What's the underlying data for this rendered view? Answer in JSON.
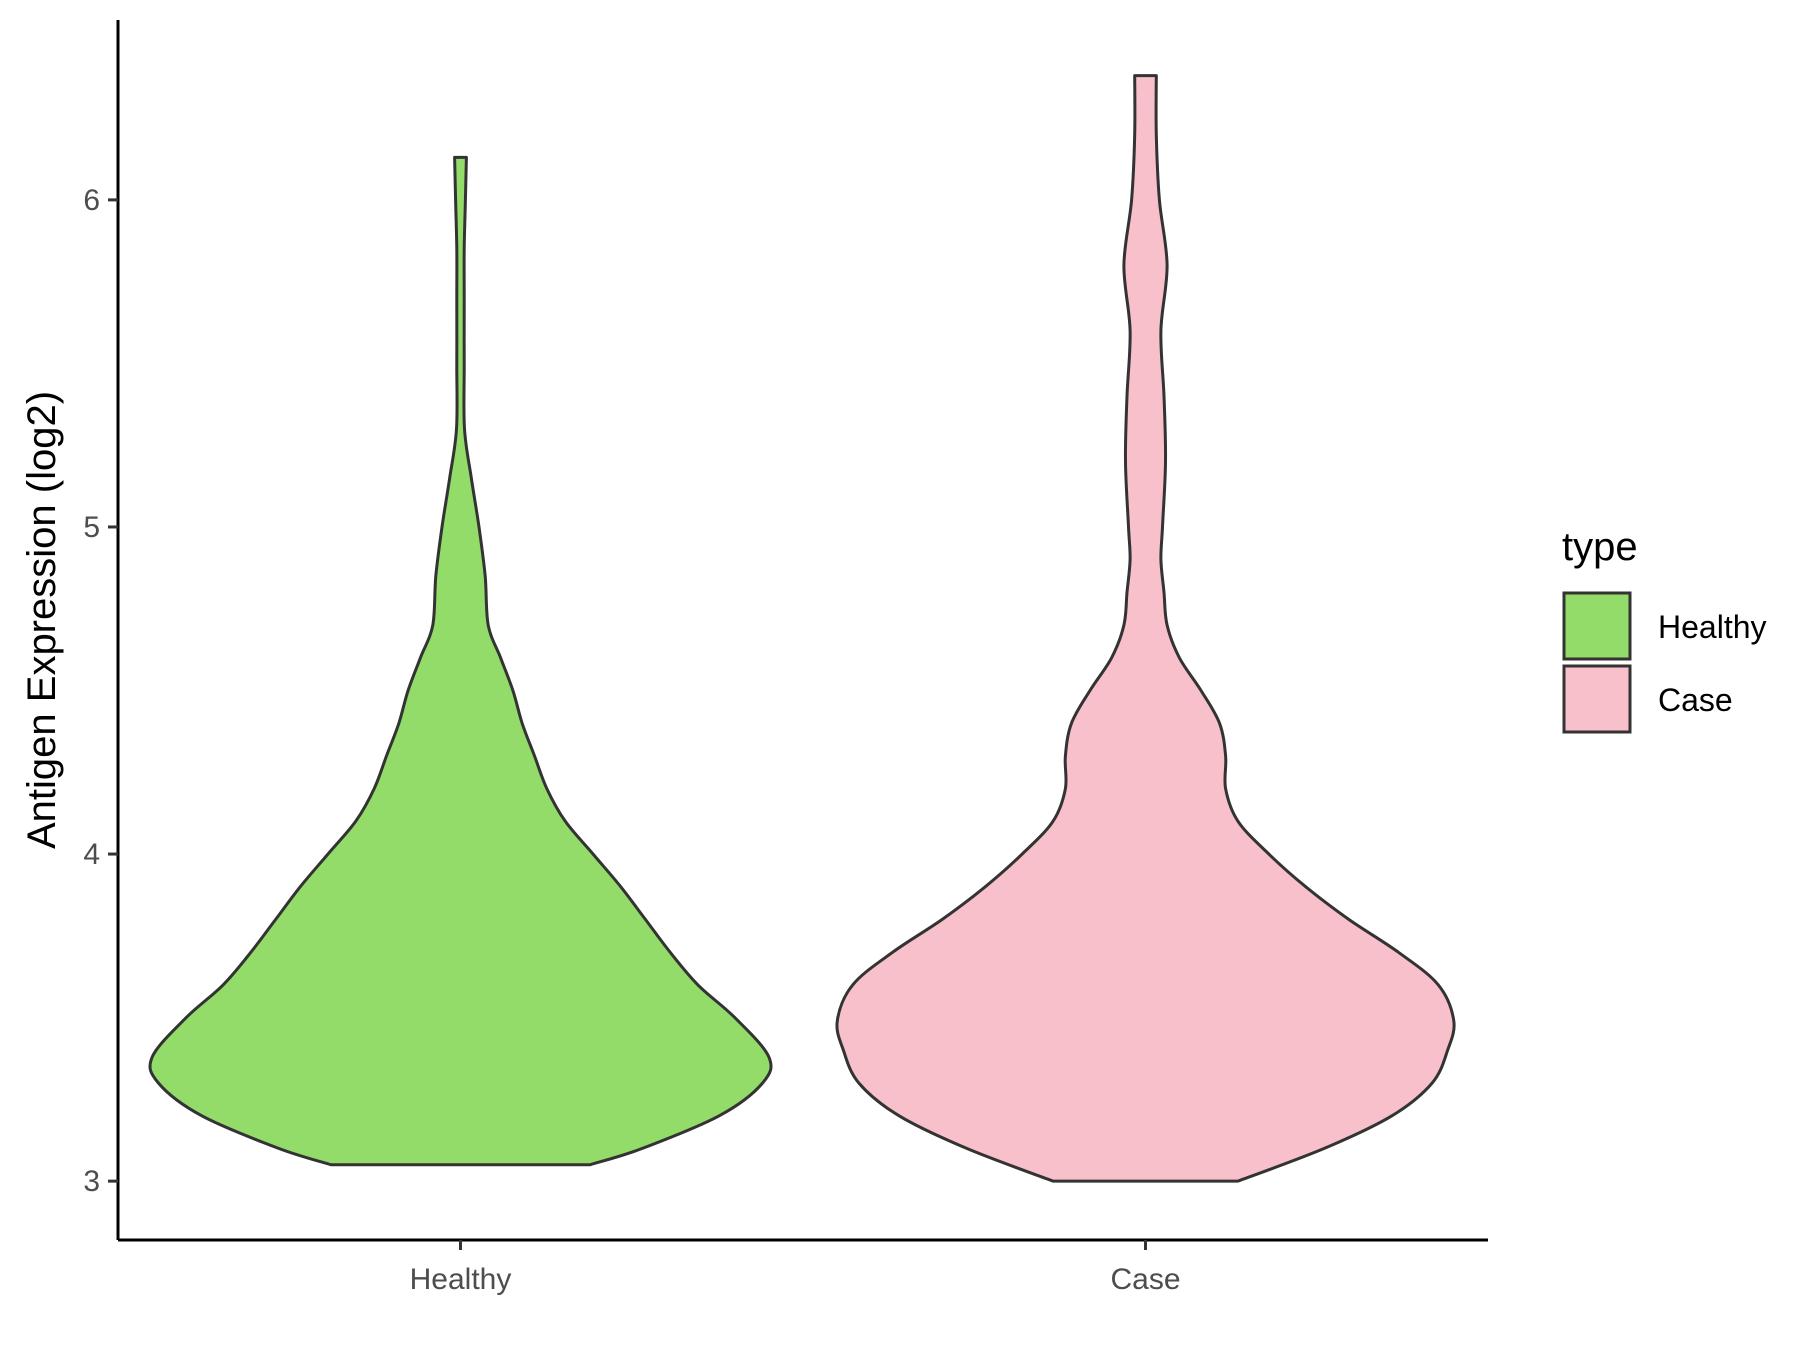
{
  "chart_data": {
    "type": "violin",
    "title": "",
    "xlabel": "",
    "ylabel": "Antigen Expression (log2)",
    "ylim": [
      2.82,
      6.55
    ],
    "yticks": [
      3,
      4,
      5,
      6
    ],
    "categories": [
      "Healthy",
      "Case"
    ],
    "grid": false,
    "legend": {
      "title": "type",
      "placement": "right",
      "entries": [
        {
          "label": "Healthy",
          "color": "#93dc6a"
        },
        {
          "label": "Case",
          "color": "#f8c0cb"
        }
      ]
    },
    "series": [
      {
        "name": "Healthy",
        "color": "#93dc6a",
        "min": 3.05,
        "max": 6.13,
        "density_profile": [
          [
            3.05,
            0.42
          ],
          [
            3.1,
            0.59
          ],
          [
            3.2,
            0.84
          ],
          [
            3.3,
            0.98
          ],
          [
            3.38,
            1.0
          ],
          [
            3.5,
            0.89
          ],
          [
            3.6,
            0.77
          ],
          [
            3.7,
            0.68
          ],
          [
            3.8,
            0.6
          ],
          [
            3.9,
            0.52
          ],
          [
            4.0,
            0.43
          ],
          [
            4.1,
            0.34
          ],
          [
            4.2,
            0.28
          ],
          [
            4.3,
            0.24
          ],
          [
            4.4,
            0.2
          ],
          [
            4.5,
            0.17
          ],
          [
            4.6,
            0.13
          ],
          [
            4.7,
            0.09
          ],
          [
            4.85,
            0.08
          ],
          [
            5.0,
            0.06
          ],
          [
            5.15,
            0.035
          ],
          [
            5.3,
            0.013
          ],
          [
            5.5,
            0.012
          ],
          [
            5.7,
            0.012
          ],
          [
            5.85,
            0.012
          ],
          [
            6.0,
            0.016
          ],
          [
            6.13,
            0.019
          ]
        ]
      },
      {
        "name": "Case",
        "color": "#f8c0cb",
        "min": 3.0,
        "max": 6.38,
        "density_profile": [
          [
            3.0,
            0.3
          ],
          [
            3.1,
            0.58
          ],
          [
            3.2,
            0.8
          ],
          [
            3.3,
            0.93
          ],
          [
            3.4,
            0.98
          ],
          [
            3.49,
            1.0
          ],
          [
            3.6,
            0.95
          ],
          [
            3.7,
            0.82
          ],
          [
            3.8,
            0.66
          ],
          [
            3.9,
            0.52
          ],
          [
            4.0,
            0.4
          ],
          [
            4.1,
            0.3
          ],
          [
            4.2,
            0.26
          ],
          [
            4.3,
            0.26
          ],
          [
            4.4,
            0.24
          ],
          [
            4.5,
            0.18
          ],
          [
            4.6,
            0.11
          ],
          [
            4.7,
            0.07
          ],
          [
            4.8,
            0.06
          ],
          [
            4.9,
            0.05
          ],
          [
            5.0,
            0.055
          ],
          [
            5.2,
            0.065
          ],
          [
            5.4,
            0.06
          ],
          [
            5.6,
            0.05
          ],
          [
            5.8,
            0.07
          ],
          [
            6.0,
            0.045
          ],
          [
            6.2,
            0.035
          ],
          [
            6.38,
            0.035
          ]
        ]
      }
    ]
  }
}
